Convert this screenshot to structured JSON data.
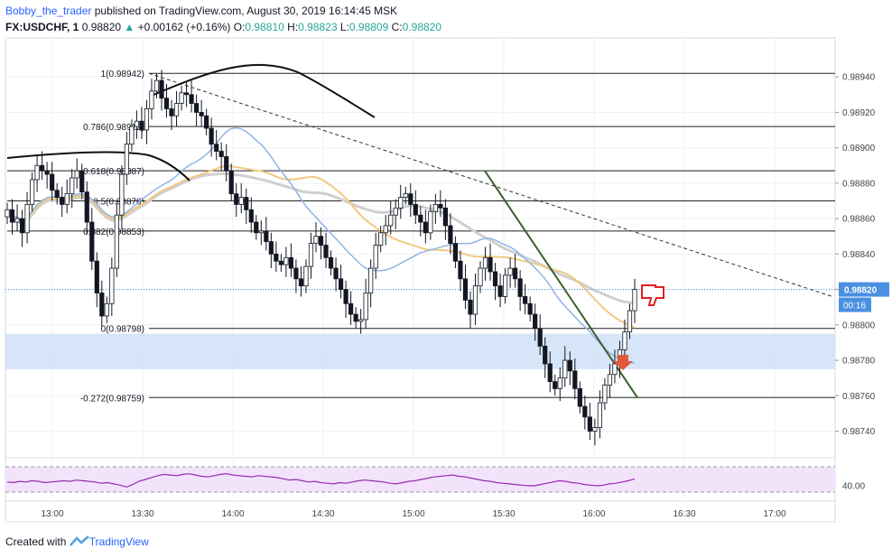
{
  "header": {
    "author": "Bobby_the_trader",
    "published": "published on TradingView.com, August 30, 2019 16:14:45 MSK",
    "symbol": "FX:USDCHF, 1",
    "last": "0.98820",
    "change_arrow": "▲",
    "change": "+0.00162 (+0.16%)",
    "o_label": "O:",
    "o_value": "0.98810",
    "h_label": "H:",
    "h_value": "0.98823",
    "l_label": "L:",
    "l_value": "0.98809",
    "c_label": "C:",
    "c_value": "0.98820"
  },
  "footer": {
    "created_with": "Created with",
    "brand": "TradingView"
  },
  "colors": {
    "up_candle": "#ffffff",
    "down_candle": "#131722",
    "wick": "#131722",
    "ma_blue": "#90b4e6",
    "ma_orange": "#f2c981",
    "ma_grey": "#d0d0d0",
    "trendline": "#3b5f2e",
    "zone": "#cfe0f7",
    "rsi_line": "#9c27b0",
    "rsi_fill": "#f2e3fb",
    "price_tag": "#4a90e2",
    "arrow": "#e25a3a",
    "thumb": "#e02020"
  },
  "chart_data": {
    "type": "candlestick",
    "symbol": "FX:USDCHF, 1",
    "ylim": [
      0.98726,
      0.98962
    ],
    "y_ticks": [
      "0.98740",
      "0.98760",
      "0.98780",
      "0.98800",
      "0.98820",
      "0.98840",
      "0.98860",
      "0.98880",
      "0.98900",
      "0.98920",
      "0.98940"
    ],
    "y_tick_values": [
      0.9874,
      0.9876,
      0.9878,
      0.988,
      0.9882,
      0.9884,
      0.9886,
      0.9888,
      0.989,
      0.9892,
      0.9894
    ],
    "x_ticks": [
      "13:00",
      "13:30",
      "14:00",
      "14:30",
      "15:00",
      "15:30",
      "16:00",
      "16:30",
      "17:00"
    ],
    "price_label": "0.98820",
    "countdown": "00:16",
    "fibonacci": [
      {
        "label": "1(0.98942)",
        "price": 0.98942
      },
      {
        "label": "0.786(0.98912)",
        "price": 0.98912
      },
      {
        "label": "0.618(0.98887)",
        "price": 0.98887
      },
      {
        "label": "0.5(0.98870)",
        "price": 0.9887
      },
      {
        "label": "0.382(0.98853)",
        "price": 0.98853
      },
      {
        "label": "0(0.98798)",
        "price": 0.98798
      },
      {
        "label": "-0.272(0.98759)",
        "price": 0.98759
      }
    ],
    "zone": {
      "from": 0.98775,
      "to": 0.98795
    },
    "rsi": {
      "tick": "40.00",
      "values": [
        46,
        45,
        47,
        46,
        48,
        47,
        45,
        46,
        47,
        48,
        47,
        49,
        48,
        47,
        46,
        44,
        45,
        43,
        41,
        38,
        42,
        47,
        50,
        53,
        56,
        58,
        57,
        56,
        58,
        59,
        57,
        55,
        54,
        56,
        58,
        59,
        57,
        56,
        55,
        54,
        56,
        55,
        54,
        53,
        51,
        49,
        50,
        48,
        46,
        47,
        45,
        44,
        43,
        45,
        44,
        46,
        48,
        49,
        48,
        47,
        46,
        44,
        43,
        45,
        47,
        48,
        50,
        52,
        54,
        55,
        56,
        57,
        55,
        54,
        52,
        50,
        48,
        47,
        45,
        44,
        43,
        42,
        41,
        40,
        40,
        42,
        44,
        46,
        48,
        47,
        45,
        44,
        42,
        41,
        40,
        41,
        43,
        44,
        46,
        48,
        51
      ]
    },
    "candles_close": [
      0.98865,
      0.98858,
      0.9886,
      0.98852,
      0.98868,
      0.98882,
      0.9889,
      0.98887,
      0.98885,
      0.98876,
      0.98872,
      0.98868,
      0.98874,
      0.98883,
      0.98887,
      0.98875,
      0.98858,
      0.98836,
      0.98818,
      0.98805,
      0.98812,
      0.98832,
      0.98862,
      0.98885,
      0.98902,
      0.98912,
      0.98915,
      0.9891,
      0.98922,
      0.98932,
      0.98938,
      0.98928,
      0.98922,
      0.98918,
      0.98925,
      0.98931,
      0.9893,
      0.98925,
      0.9892,
      0.98918,
      0.98911,
      0.98902,
      0.98898,
      0.98895,
      0.98887,
      0.98874,
      0.98868,
      0.98872,
      0.98865,
      0.98858,
      0.98852,
      0.98853,
      0.98847,
      0.9884,
      0.98836,
      0.98834,
      0.98838,
      0.98832,
      0.98826,
      0.98822,
      0.98833,
      0.98846,
      0.9885,
      0.98845,
      0.98838,
      0.98832,
      0.98826,
      0.9882,
      0.98812,
      0.98806,
      0.98802,
      0.98803,
      0.98818,
      0.98832,
      0.98845,
      0.98852,
      0.98856,
      0.98862,
      0.98866,
      0.98872,
      0.98874,
      0.98868,
      0.98862,
      0.98858,
      0.98852,
      0.98864,
      0.98868,
      0.98866,
      0.98856,
      0.98846,
      0.98836,
      0.98826,
      0.98814,
      0.98806,
      0.98822,
      0.98832,
      0.98838,
      0.9883,
      0.98822,
      0.98816,
      0.98828,
      0.98832,
      0.98826,
      0.98816,
      0.98812,
      0.98806,
      0.98798,
      0.98788,
      0.98778,
      0.98768,
      0.98764,
      0.9877,
      0.9878,
      0.98774,
      0.98764,
      0.98754,
      0.98748,
      0.9874,
      0.98742,
      0.98756,
      0.98766,
      0.98772,
      0.98778,
      0.98786,
      0.98796,
      0.98808,
      0.9882
    ]
  }
}
